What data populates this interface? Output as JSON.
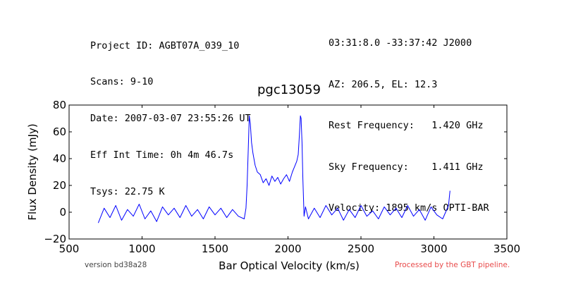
{
  "header": {
    "left_lines": [
      "Project ID: AGBT07A_039_10",
      "Scans: 9-10",
      "Date: 2007-03-07 23:55:26 UT",
      "Eff Int Time: 0h 4m 46.7s",
      "Tsys: 22.75 K"
    ],
    "right_lines": [
      "03:31:8.0 -33:37:42 J2000",
      "AZ: 206.5, EL: 12.3",
      "Rest Frequency:   1.420 GHz",
      "Sky Frequency:    1.411 GHz",
      "Velocity: 1895 km/s OPTI-BAR"
    ]
  },
  "footer": {
    "version": "version bd38a28",
    "processed": "Processed by the GBT pipeline."
  },
  "colors": {
    "line": "#0000ff",
    "processed_text": "#e84a4a"
  },
  "chart_data": {
    "type": "line",
    "title": "pgc13059",
    "xlabel": "Bar Optical Velocity (km/s)",
    "ylabel": "Flux Density (mJy)",
    "xlim": [
      500,
      3500
    ],
    "ylim": [
      -20,
      80
    ],
    "xticks": [
      500,
      1000,
      1500,
      2000,
      2500,
      3000,
      3500
    ],
    "yticks": [
      -20,
      0,
      20,
      40,
      60,
      80
    ],
    "grid": false,
    "series": [
      {
        "x": [
          700,
          740,
          780,
          820,
          860,
          900,
          940,
          980,
          1020,
          1060,
          1100,
          1140,
          1180,
          1220,
          1260,
          1300,
          1340,
          1380,
          1420,
          1460,
          1500,
          1540,
          1580,
          1620,
          1660,
          1700,
          1712,
          1720,
          1728,
          1735,
          1742,
          1750,
          1760,
          1775,
          1790,
          1810,
          1830,
          1850,
          1870,
          1890,
          1910,
          1930,
          1950,
          1970,
          1990,
          2010,
          2030,
          2045,
          2060,
          2070,
          2078,
          2085,
          2090,
          2096,
          2102,
          2110,
          2120,
          2140,
          2180,
          2220,
          2260,
          2300,
          2340,
          2380,
          2420,
          2460,
          2500,
          2540,
          2580,
          2620,
          2660,
          2700,
          2740,
          2780,
          2820,
          2860,
          2900,
          2940,
          2980,
          3020,
          3060,
          3100,
          3110
        ],
        "y": [
          -8,
          3,
          -4,
          5,
          -6,
          2,
          -3,
          6,
          -5,
          1,
          -7,
          4,
          -2,
          3,
          -4,
          5,
          -3,
          2,
          -5,
          4,
          -2,
          3,
          -4,
          2,
          -3,
          -5,
          3,
          20,
          48,
          72,
          66,
          52,
          44,
          35,
          30,
          28,
          22,
          25,
          20,
          27,
          23,
          26,
          21,
          25,
          28,
          23,
          30,
          34,
          38,
          43,
          57,
          72,
          70,
          52,
          25,
          -3,
          4,
          -5,
          3,
          -4,
          5,
          -2,
          3,
          -6,
          2,
          -4,
          5,
          -3,
          1,
          -5,
          4,
          -2,
          3,
          -4,
          5,
          -3,
          2,
          -6,
          4,
          -2,
          -5,
          5,
          16
        ]
      }
    ]
  }
}
